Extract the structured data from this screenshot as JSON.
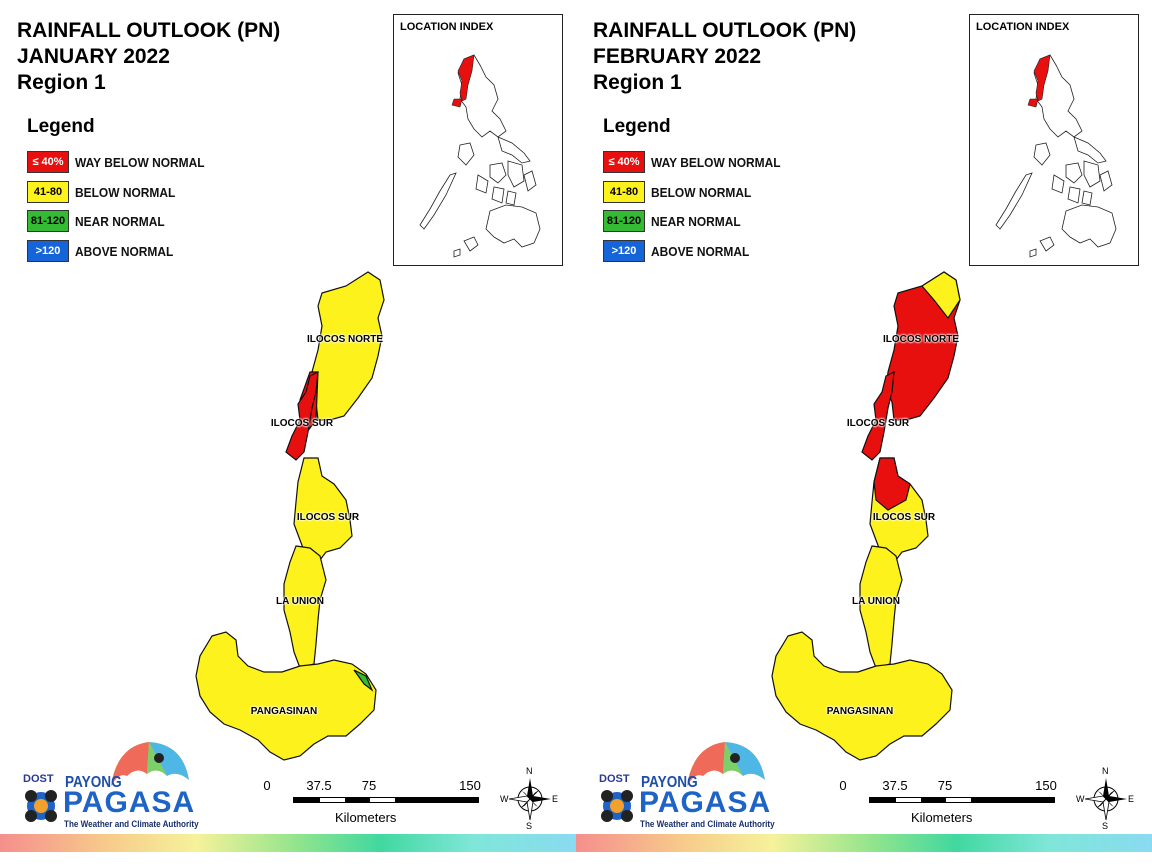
{
  "panels": [
    {
      "title_line1": "RAINFALL OUTLOOK (PN)",
      "title_line2": "JANUARY 2022",
      "title_line3": "Region 1",
      "location_index_label": "LOCATION INDEX",
      "provinces": [
        "ILOCOS NORTE",
        "ILOCOS SUR",
        "ILOCOS SUR",
        "LA UNION",
        "PANGASINAN"
      ]
    },
    {
      "title_line1": "RAINFALL OUTLOOK (PN)",
      "title_line2": "FEBRUARY 2022",
      "title_line3": "Region 1",
      "location_index_label": "LOCATION INDEX",
      "provinces": [
        "ILOCOS NORTE",
        "ILOCOS SUR",
        "ILOCOS SUR",
        "LA UNION",
        "PANGASINAN"
      ]
    }
  ],
  "legend": {
    "title": "Legend",
    "items": [
      {
        "range": "≤ 40%",
        "label": "WAY BELOW NORMAL",
        "color": "#e8100f",
        "text_color": "#ffffff"
      },
      {
        "range": "41-80",
        "label": "BELOW NORMAL",
        "color": "#fdf21c",
        "text_color": "#000000"
      },
      {
        "range": "81-120",
        "label": "NEAR NORMAL",
        "color": "#33bb33",
        "text_color": "#000000"
      },
      {
        "range": ">120",
        "label": "ABOVE NORMAL",
        "color": "#1565d8",
        "text_color": "#ffffff"
      }
    ]
  },
  "logo": {
    "dost": "DOST",
    "payong": "PAYONG",
    "pagasa": "PAGASA",
    "tagline": "The Weather and Climate Authority"
  },
  "scale_bar": {
    "ticks": [
      "0",
      "37.5",
      "75",
      "150"
    ],
    "unit": "Kilometers"
  },
  "compass": {
    "n": "N",
    "s": "S",
    "e": "E",
    "w": "W"
  }
}
